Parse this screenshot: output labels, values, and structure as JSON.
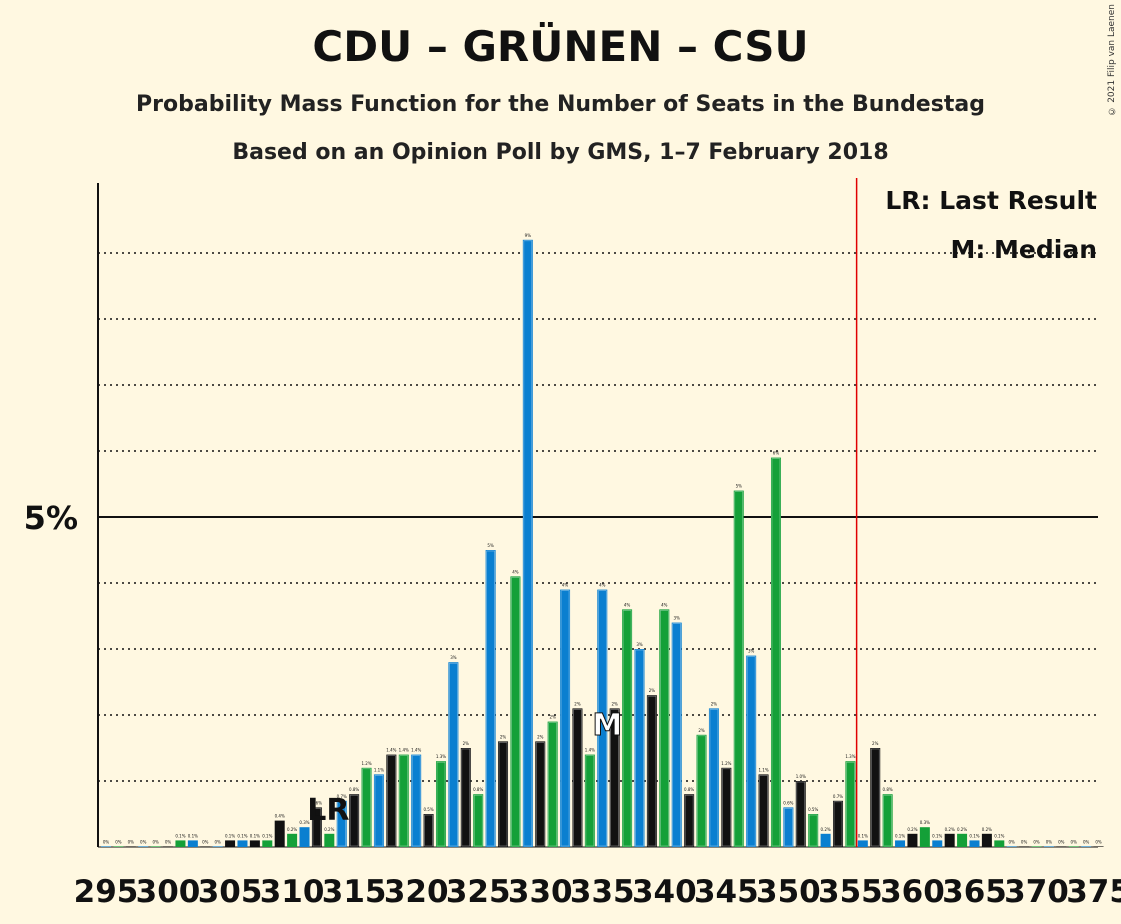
{
  "title": "CDU – GRÜNEN – CSU",
  "subtitle1": "Probability Mass Function for the Number of Seats in the Bundestag",
  "subtitle2": "Based on an Opinion Poll by GMS, 1–7 February 2018",
  "copyright": "© 2021 Filip van Laenen",
  "legend": {
    "lr": "LR: Last Result",
    "m": "M: Median"
  },
  "colors": {
    "blue": "#0A7FD0",
    "green": "#14A038",
    "black": "#111111",
    "majority": "#E00000"
  },
  "chart_data": {
    "type": "bar",
    "x_start": 295,
    "x_end": 375,
    "ytick_label": "5%",
    "ylim": [
      0,
      10
    ],
    "majority_seat": 355,
    "last_result_seat": 313,
    "median_seat": 335,
    "lr_label": "LR",
    "median_label": "M",
    "xtick_labels": [
      "295",
      "300",
      "305",
      "310",
      "315",
      "320",
      "325",
      "330",
      "335",
      "340",
      "345",
      "350",
      "355",
      "360",
      "365",
      "370",
      "375"
    ],
    "values": [
      0.0,
      0.0,
      0.0,
      0.0,
      0.0,
      0.0,
      0.1,
      0.1,
      0.0,
      0.0,
      0.1,
      0.1,
      0.1,
      0.1,
      0.4,
      0.2,
      0.3,
      0.6,
      0.2,
      0.7,
      0.8,
      1.2,
      1.1,
      1.4,
      1.4,
      1.4,
      0.5,
      1.3,
      2.8,
      1.5,
      0.8,
      4.5,
      1.6,
      4.1,
      9.2,
      1.6,
      1.9,
      3.9,
      2.1,
      1.4,
      3.9,
      2.1,
      3.6,
      3.0,
      2.3,
      3.6,
      3.4,
      0.8,
      1.7,
      2.1,
      1.2,
      5.4,
      2.9,
      1.1,
      5.9,
      0.6,
      1.0,
      0.5,
      0.2,
      0.7,
      1.3,
      0.1,
      1.5,
      0.8,
      0.1,
      0.2,
      0.3,
      0.1,
      0.2,
      0.2,
      0.1,
      0.2,
      0.1,
      0.0,
      0.0,
      0.0,
      0.0,
      0.0,
      0.0,
      0.0,
      0.0
    ],
    "value_labels": [
      "0%",
      "0%",
      "0%",
      "0%",
      "0%",
      "0%",
      "0.1%",
      "0.1%",
      "0%",
      "0%",
      "0.1%",
      "0.1%",
      "0.1%",
      "0.1%",
      "0.4%",
      "0.2%",
      "0.3%",
      "0.6%",
      "0.2%",
      "0.7%",
      "0.8%",
      "1.2%",
      "1.1%",
      "1.4%",
      "1.4%",
      "1.4%",
      "0.5%",
      "1.3%",
      "3%",
      "2%",
      "0.8%",
      "5%",
      "2%",
      "4%",
      "9%",
      "2%",
      "2%",
      "4%",
      "2%",
      "1.4%",
      "4%",
      "2%",
      "4%",
      "3%",
      "2%",
      "4%",
      "3%",
      "0.8%",
      "2%",
      "2%",
      "1.2%",
      "5%",
      "3%",
      "1.1%",
      "6%",
      "0.6%",
      "1.0%",
      "0.5%",
      "0.2%",
      "0.7%",
      "1.3%",
      "0.1%",
      "2%",
      "0.8%",
      "0.1%",
      "0.2%",
      "0.3%",
      "0.1%",
      "0.2%",
      "0.2%",
      "0.1%",
      "0.2%",
      "0.1%",
      "0%",
      "0%",
      "0%",
      "0%",
      "0%",
      "0%",
      "0%",
      "0%"
    ],
    "bar_colors": [
      "blue",
      "green",
      "black",
      "blue",
      "green",
      "black",
      "green",
      "blue",
      "black",
      "blue",
      "black",
      "blue",
      "black",
      "green",
      "black",
      "green",
      "blue",
      "black",
      "green",
      "blue",
      "black",
      "green",
      "blue",
      "black",
      "green",
      "blue",
      "black",
      "green",
      "blue",
      "black",
      "green",
      "blue",
      "black",
      "green",
      "blue",
      "black",
      "green",
      "blue",
      "black",
      "green",
      "blue",
      "black",
      "green",
      "blue",
      "black",
      "green",
      "blue",
      "black",
      "green",
      "blue",
      "black",
      "green",
      "blue",
      "black",
      "green",
      "blue",
      "black",
      "green",
      "blue",
      "black",
      "green",
      "blue",
      "black",
      "green",
      "blue",
      "black",
      "green",
      "blue",
      "black",
      "green",
      "blue",
      "black",
      "green",
      "blue",
      "black",
      "green",
      "blue",
      "black",
      "green",
      "blue",
      "black"
    ]
  }
}
